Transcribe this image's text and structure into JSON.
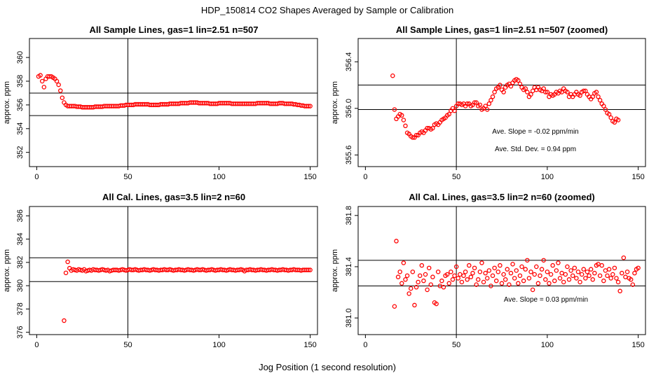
{
  "figure": {
    "title": "HDP_150814  CO2 Shapes Averaged by Sample or Calibration",
    "xlabel": "Jog Position (1 second resolution)"
  },
  "colors": {
    "points": "#ff0000",
    "axes": "#000000",
    "background": "#ffffff"
  },
  "chart_data": [
    {
      "type": "scatter",
      "title": "All Sample Lines, gas=1 lin=2.51 n=507",
      "ylabel": "approx. ppm",
      "xlim": [
        -4,
        154
      ],
      "ylim": [
        350.8,
        361.6
      ],
      "xticks": [
        0,
        50,
        100,
        150
      ],
      "yticks": [
        352,
        354,
        356,
        358,
        360
      ],
      "ytick_labels": [
        "352",
        "354",
        "356",
        "358",
        "360"
      ],
      "vline": 50,
      "hlines": [
        357.0,
        355.1
      ],
      "annotations": [],
      "series": [
        {
          "name": "sample",
          "x_start": 1,
          "x_step": 1,
          "y": [
            358.4,
            358.5,
            358.0,
            357.5,
            358.2,
            358.4,
            358.4,
            358.4,
            358.3,
            358.2,
            358.0,
            357.7,
            357.2,
            356.6,
            356.2,
            356.0,
            355.9,
            355.9,
            355.9,
            355.9,
            355.9,
            355.85,
            355.85,
            355.85,
            355.8,
            355.8,
            355.8,
            355.8,
            355.8,
            355.8,
            355.8,
            355.85,
            355.85,
            355.85,
            355.85,
            355.85,
            355.9,
            355.9,
            355.9,
            355.9,
            355.9,
            355.9,
            355.9,
            355.9,
            355.9,
            355.95,
            355.95,
            355.95,
            356.0,
            356.0,
            356.0,
            356.0,
            356.0,
            356.05,
            356.05,
            356.05,
            356.05,
            356.05,
            356.05,
            356.05,
            356.05,
            356.0,
            356.0,
            356.0,
            356.0,
            356.0,
            356.0,
            356.05,
            356.05,
            356.05,
            356.05,
            356.05,
            356.1,
            356.1,
            356.1,
            356.1,
            356.1,
            356.1,
            356.15,
            356.15,
            356.15,
            356.15,
            356.15,
            356.2,
            356.2,
            356.2,
            356.2,
            356.2,
            356.15,
            356.15,
            356.15,
            356.15,
            356.15,
            356.15,
            356.1,
            356.1,
            356.1,
            356.1,
            356.1,
            356.15,
            356.15,
            356.15,
            356.15,
            356.15,
            356.15,
            356.15,
            356.1,
            356.1,
            356.1,
            356.1,
            356.1,
            356.1,
            356.1,
            356.1,
            356.1,
            356.1,
            356.1,
            356.1,
            356.1,
            356.1,
            356.15,
            356.15,
            356.15,
            356.15,
            356.15,
            356.15,
            356.15,
            356.1,
            356.1,
            356.1,
            356.1,
            356.1,
            356.15,
            356.15,
            356.15,
            356.1,
            356.1,
            356.1,
            356.1,
            356.1,
            356.05,
            356.05,
            356.0,
            356.0,
            355.95,
            355.95,
            355.9,
            355.9,
            355.9,
            355.9
          ]
        }
      ]
    },
    {
      "type": "scatter",
      "title": "All Sample Lines, gas=1 lin=2.51 n=507 (zoomed)",
      "ylabel": "approx. ppm",
      "xlim": [
        -4,
        154
      ],
      "ylim": [
        355.5,
        356.6
      ],
      "xticks": [
        0,
        50,
        100,
        150
      ],
      "yticks": [
        355.6,
        356.0,
        356.4
      ],
      "ytick_labels": [
        "355.6",
        "356.0",
        "356.4"
      ],
      "vline": 50,
      "hlines": [
        356.2,
        355.99
      ],
      "annotations": [
        "Ave. Slope =  -0.02  ppm/min",
        "Ave. Std. Dev. =  0.94  ppm"
      ],
      "series": [
        {
          "name": "sample zoomed",
          "x_start": 15,
          "x_step": 1,
          "y": [
            356.28,
            355.99,
            355.91,
            355.93,
            355.95,
            355.94,
            355.9,
            355.85,
            355.79,
            355.78,
            355.76,
            355.75,
            355.75,
            355.77,
            355.77,
            355.79,
            355.8,
            355.79,
            355.81,
            355.83,
            355.83,
            355.82,
            355.83,
            355.86,
            355.87,
            355.86,
            355.88,
            355.9,
            355.91,
            355.92,
            355.94,
            355.95,
            355.98,
            356.0,
            355.98,
            356.02,
            356.04,
            356.04,
            356.03,
            356.04,
            356.02,
            356.04,
            356.04,
            356.02,
            356.03,
            356.05,
            356.05,
            356.02,
            356.03,
            355.99,
            356.0,
            356.02,
            355.99,
            356.04,
            356.07,
            356.1,
            356.14,
            356.17,
            356.18,
            356.2,
            356.16,
            356.14,
            356.18,
            356.2,
            356.21,
            356.19,
            356.22,
            356.24,
            356.25,
            356.24,
            356.21,
            356.18,
            356.16,
            356.17,
            356.14,
            356.1,
            356.12,
            356.15,
            356.18,
            356.16,
            356.18,
            356.16,
            356.15,
            356.17,
            356.14,
            356.14,
            356.1,
            356.12,
            356.11,
            356.12,
            356.14,
            356.13,
            356.15,
            356.14,
            356.17,
            356.15,
            356.14,
            356.1,
            356.12,
            356.1,
            356.12,
            356.14,
            356.12,
            356.11,
            356.14,
            356.15,
            356.15,
            356.12,
            356.1,
            356.08,
            356.1,
            356.13,
            356.14,
            356.1,
            356.07,
            356.04,
            356.02,
            355.99,
            355.96,
            355.95,
            355.92,
            355.89,
            355.88,
            355.91,
            355.9
          ]
        }
      ]
    },
    {
      "type": "scatter",
      "title": "All Cal. Lines, gas=3.5 lin=2 n=60",
      "ylabel": "approx. ppm",
      "xlim": [
        -4,
        154
      ],
      "ylim": [
        375.8,
        386.8
      ],
      "xticks": [
        0,
        50,
        100,
        150
      ],
      "yticks": [
        376,
        378,
        380,
        382,
        384,
        386
      ],
      "ytick_labels": [
        "376",
        "378",
        "380",
        "382",
        "384",
        "386"
      ],
      "vline": 50,
      "hlines": [
        382.4,
        380.35
      ],
      "annotations": [],
      "series": [
        {
          "name": "cal",
          "x_start": 15,
          "x_step": 1,
          "y": [
            377.0,
            381.1,
            382.05,
            381.5,
            381.3,
            381.4,
            381.35,
            381.3,
            381.4,
            381.35,
            381.3,
            381.4,
            381.25,
            381.3,
            381.35,
            381.3,
            381.4,
            381.35,
            381.35,
            381.3,
            381.35,
            381.4,
            381.35,
            381.3,
            381.35,
            381.25,
            381.3,
            381.35,
            381.35,
            381.35,
            381.3,
            381.35,
            381.4,
            381.35,
            381.3,
            381.35,
            381.4,
            381.35,
            381.35,
            381.4,
            381.35,
            381.3,
            381.35,
            381.35,
            381.4,
            381.35,
            381.35,
            381.3,
            381.35,
            381.4,
            381.35,
            381.35,
            381.3,
            381.35,
            381.35,
            381.4,
            381.35,
            381.35,
            381.4,
            381.35,
            381.3,
            381.35,
            381.35,
            381.4,
            381.35,
            381.35,
            381.3,
            381.35,
            381.4,
            381.35,
            381.35,
            381.3,
            381.35,
            381.4,
            381.35,
            381.35,
            381.4,
            381.35,
            381.3,
            381.35,
            381.35,
            381.4,
            381.35,
            381.3,
            381.35,
            381.35,
            381.4,
            381.35,
            381.35,
            381.3,
            381.35,
            381.4,
            381.35,
            381.35,
            381.3,
            381.35,
            381.35,
            381.4,
            381.35,
            381.25,
            381.35,
            381.35,
            381.4,
            381.35,
            381.35,
            381.3,
            381.35,
            381.35,
            381.4,
            381.35,
            381.35,
            381.3,
            381.35,
            381.35,
            381.4,
            381.35,
            381.35,
            381.3,
            381.35,
            381.35,
            381.4,
            381.35,
            381.35,
            381.3,
            381.35,
            381.35,
            381.4,
            381.35,
            381.35,
            381.35,
            381.3,
            381.35,
            381.35,
            381.35,
            381.35,
            381.35
          ]
        }
      ]
    },
    {
      "type": "scatter",
      "title": "All Cal. Lines, gas=3.5 lin=2 n=60 (zoomed)",
      "ylabel": "approx. ppm",
      "xlim": [
        -4,
        154
      ],
      "ylim": [
        380.87,
        381.87
      ],
      "xticks": [
        0,
        50,
        100,
        150
      ],
      "yticks": [
        381.0,
        381.4,
        381.8
      ],
      "ytick_labels": [
        "381.0",
        "381.4",
        "381.8"
      ],
      "vline": 50,
      "hlines": [
        381.45,
        381.25
      ],
      "annotations": [
        "Ave. Slope =  0.03  ppm/min"
      ],
      "series": [
        {
          "name": "cal zoomed",
          "x_start": 16,
          "x_step": 1,
          "y": [
            381.09,
            381.6,
            381.32,
            381.36,
            381.27,
            381.43,
            381.3,
            381.33,
            381.19,
            381.23,
            381.36,
            381.1,
            381.24,
            381.28,
            381.33,
            381.41,
            381.29,
            381.34,
            381.22,
            381.39,
            381.26,
            381.32,
            381.12,
            381.11,
            381.36,
            381.25,
            381.29,
            381.24,
            381.33,
            381.34,
            381.27,
            381.36,
            381.3,
            381.33,
            381.4,
            381.31,
            381.34,
            381.28,
            381.33,
            381.36,
            381.3,
            381.41,
            381.32,
            381.35,
            381.39,
            381.26,
            381.3,
            381.36,
            381.43,
            381.28,
            381.35,
            381.31,
            381.37,
            381.25,
            381.33,
            381.39,
            381.29,
            381.36,
            381.41,
            381.27,
            381.34,
            381.3,
            381.38,
            381.26,
            381.35,
            381.42,
            381.31,
            381.37,
            381.27,
            381.33,
            381.4,
            381.29,
            381.38,
            381.45,
            381.31,
            381.36,
            381.22,
            381.34,
            381.4,
            381.27,
            381.33,
            381.38,
            381.45,
            381.3,
            381.36,
            381.27,
            381.34,
            381.41,
            381.29,
            381.37,
            381.43,
            381.31,
            381.35,
            381.28,
            381.34,
            381.4,
            381.3,
            381.37,
            381.33,
            381.39,
            381.31,
            381.36,
            381.28,
            381.34,
            381.38,
            381.31,
            381.36,
            381.33,
            381.38,
            381.3,
            381.35,
            381.41,
            381.42,
            381.33,
            381.41,
            381.29,
            381.37,
            381.33,
            381.38,
            381.31,
            381.34,
            381.39,
            381.31,
            381.28,
            381.21,
            381.35,
            381.47,
            381.32,
            381.36,
            381.31,
            381.3,
            381.26,
            381.35,
            381.38,
            381.39
          ]
        }
      ]
    }
  ]
}
